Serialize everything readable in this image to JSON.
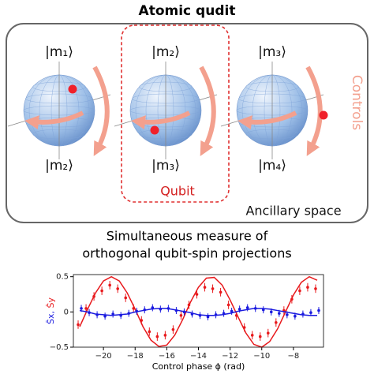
{
  "diagram": {
    "title": "Atomic qudit",
    "top_kets": [
      "|m₁⟩",
      "|m₂⟩",
      "|m₃⟩"
    ],
    "bottom_kets": [
      "|m₂⟩",
      "|m₃⟩",
      "|m₄⟩"
    ],
    "qubit_label": "Qubit",
    "controls_label": "Controls",
    "ancillary_label": "Ancillary space"
  },
  "chart_data": {
    "type": "scatter",
    "title": [
      "Simultaneous measure of",
      "orthogonal qubit-spin projections"
    ],
    "xlabel": "Control phase ϕ (rad)",
    "ylabel": [
      "Ŝx,",
      "Ŝy"
    ],
    "x": [
      -21.5,
      -21,
      -20.5,
      -20,
      -19.5,
      -19,
      -18.5,
      -18,
      -17.5,
      -17,
      -16.5,
      -16,
      -15.5,
      -15,
      -14.5,
      -14,
      -13.5,
      -13,
      -12.5,
      -12,
      -11.5,
      -11,
      -10.5,
      -10,
      -9.5,
      -9,
      -8.5,
      -8,
      -7.5,
      -7,
      -6.5
    ],
    "xlim": [
      -21.9,
      -6.1
    ],
    "xticks": [
      {
        "value": -20,
        "label": "−20"
      },
      {
        "value": -18,
        "label": "−18"
      },
      {
        "value": -16,
        "label": "−16"
      },
      {
        "value": -14,
        "label": "−14"
      },
      {
        "value": -12,
        "label": "−12"
      },
      {
        "value": -10,
        "label": "−10"
      },
      {
        "value": -8,
        "label": "−8"
      }
    ],
    "ylim": [
      -0.5,
      0.53
    ],
    "yticks": [
      {
        "value": -0.5,
        "label": "−0.5"
      },
      0,
      0.5
    ],
    "series": [
      {
        "color": "#e8191c",
        "values": [
          -0.18,
          0.05,
          0.22,
          0.3,
          0.38,
          0.33,
          0.2,
          0.05,
          -0.12,
          -0.28,
          -0.35,
          -0.33,
          -0.25,
          -0.05,
          0.1,
          0.25,
          0.35,
          0.33,
          0.28,
          0.1,
          -0.05,
          -0.22,
          -0.33,
          -0.35,
          -0.3,
          -0.15,
          0.02,
          0.18,
          0.3,
          0.35,
          0.33
        ],
        "errors": [
          0.06,
          0.06,
          0.06,
          0.06,
          0.06,
          0.06,
          0.06,
          0.06,
          0.06,
          0.06,
          0.06,
          0.06,
          0.06,
          0.06,
          0.06,
          0.06,
          0.06,
          0.06,
          0.06,
          0.06,
          0.06,
          0.06,
          0.06,
          0.06,
          0.06,
          0.06,
          0.06,
          0.06,
          0.06,
          0.06,
          0.06
        ],
        "fit": [
          -0.21,
          0.04,
          0.27,
          0.44,
          0.5,
          0.44,
          0.27,
          0.04,
          -0.21,
          -0.4,
          -0.49,
          -0.47,
          -0.33,
          -0.11,
          0.14,
          0.35,
          0.48,
          0.49,
          0.38,
          0.17,
          -0.07,
          -0.3,
          -0.46,
          -0.5,
          -0.42,
          -0.24,
          0.0,
          0.24,
          0.42,
          0.5,
          0.45
        ]
      },
      {
        "color": "#1a1adf",
        "values": [
          0.05,
          -0.01,
          -0.04,
          -0.06,
          -0.03,
          -0.05,
          -0.02,
          0.01,
          0.03,
          0.06,
          0.04,
          0.05,
          0.02,
          0.0,
          -0.03,
          -0.05,
          -0.07,
          -0.04,
          -0.02,
          0.01,
          0.04,
          0.06,
          0.05,
          0.03,
          0.0,
          -0.02,
          -0.04,
          -0.06,
          -0.03,
          -0.01,
          0.02
        ],
        "errors": [
          0.05,
          0.05,
          0.05,
          0.05,
          0.05,
          0.05,
          0.05,
          0.05,
          0.05,
          0.05,
          0.05,
          0.05,
          0.05,
          0.05,
          0.05,
          0.05,
          0.05,
          0.05,
          0.05,
          0.05,
          0.05,
          0.05,
          0.05,
          0.05,
          0.05,
          0.05,
          0.05,
          0.05,
          0.05,
          0.05,
          0.05
        ],
        "fit": [
          0.02,
          0.0,
          -0.03,
          -0.04,
          -0.05,
          -0.04,
          -0.03,
          0.0,
          0.02,
          0.04,
          0.05,
          0.05,
          0.03,
          0.01,
          -0.01,
          -0.04,
          -0.05,
          -0.05,
          -0.04,
          -0.02,
          0.01,
          0.03,
          0.05,
          0.05,
          0.04,
          0.02,
          0.0,
          -0.02,
          -0.04,
          -0.05,
          -0.05
        ]
      }
    ]
  }
}
